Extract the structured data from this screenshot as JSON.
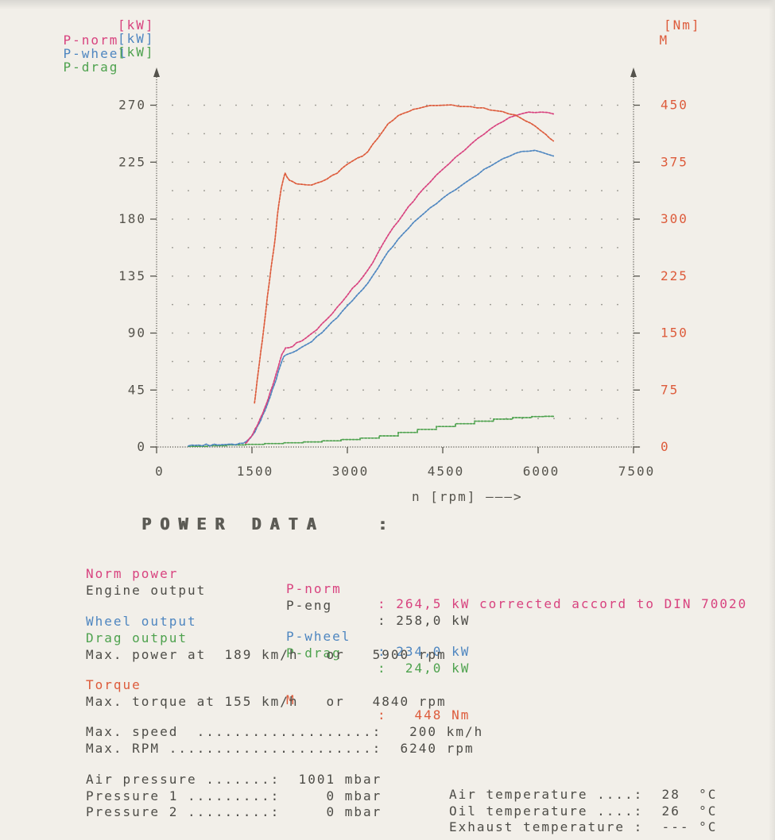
{
  "legend": {
    "items": [
      {
        "label": "P-norm",
        "unit": "[kW]",
        "color": "#d8437f"
      },
      {
        "label": "P-wheel",
        "unit": "[kW]",
        "color": "#4e86c0"
      },
      {
        "label": "P-drag",
        "unit": "[kW]",
        "color": "#4ea24e"
      }
    ],
    "torque": {
      "label": "M",
      "unit": "[Nm]",
      "color": "#dd5b3b"
    }
  },
  "chart_data": {
    "type": "line",
    "xlabel": "n [rpm] ———>",
    "x_ticks": [
      0,
      1500,
      3000,
      4500,
      6000,
      7500
    ],
    "x_range": [
      0,
      7500
    ],
    "grid": {
      "dots": true,
      "x_step_rpm": 250,
      "y_step_kw": 22.5
    },
    "left_axis": {
      "unit": "kW",
      "ticks": [
        0,
        45,
        90,
        135,
        180,
        225,
        270
      ],
      "range": [
        0,
        270
      ],
      "color": "#55534c"
    },
    "right_axis": {
      "unit": "Nm",
      "ticks": [
        0,
        75,
        150,
        225,
        300,
        375,
        450
      ],
      "range": [
        0,
        450
      ],
      "color": "#dd5b3b"
    },
    "series": [
      {
        "name": "P-drag",
        "axis": "left",
        "color": "#4ea24e",
        "step": true,
        "points": [
          [
            500,
            0.5
          ],
          [
            800,
            1.0
          ],
          [
            1100,
            1.6
          ],
          [
            1400,
            2.1
          ],
          [
            1700,
            2.7
          ],
          [
            2000,
            3.3
          ],
          [
            2300,
            4.0
          ],
          [
            2600,
            4.9
          ],
          [
            2900,
            5.9
          ],
          [
            3200,
            7.0
          ],
          [
            3500,
            8.8
          ],
          [
            3800,
            11.5
          ],
          [
            4100,
            13.9
          ],
          [
            4400,
            16.2
          ],
          [
            4700,
            18.4
          ],
          [
            5000,
            20.4
          ],
          [
            5300,
            22.0
          ],
          [
            5600,
            23.2
          ],
          [
            5900,
            24.0
          ],
          [
            6100,
            24.2
          ],
          [
            6240,
            24.4
          ]
        ]
      },
      {
        "name": "P-wheel",
        "axis": "left",
        "color": "#4e86c0",
        "step": false,
        "points": [
          [
            500,
            0.8
          ],
          [
            550,
            1.8
          ],
          [
            600,
            0.9
          ],
          [
            660,
            1.7
          ],
          [
            720,
            1.0
          ],
          [
            780,
            1.9
          ],
          [
            840,
            1.2
          ],
          [
            900,
            2.1
          ],
          [
            960,
            1.4
          ],
          [
            1030,
            2.2
          ],
          [
            1100,
            1.7
          ],
          [
            1170,
            2.4
          ],
          [
            1240,
            2.0
          ],
          [
            1310,
            2.6
          ],
          [
            1360,
            3.2
          ],
          [
            1400,
            4
          ],
          [
            1430,
            5
          ],
          [
            1460,
            6.5
          ],
          [
            1490,
            8
          ],
          [
            1520,
            10
          ],
          [
            1550,
            12.5
          ],
          [
            1580,
            15.5
          ],
          [
            1610,
            18.5
          ],
          [
            1640,
            21.5
          ],
          [
            1670,
            25
          ],
          [
            1700,
            28.5
          ],
          [
            1730,
            32
          ],
          [
            1760,
            36
          ],
          [
            1790,
            40.5
          ],
          [
            1820,
            45
          ],
          [
            1850,
            49
          ],
          [
            1880,
            53.5
          ],
          [
            1910,
            58.5
          ],
          [
            1940,
            63.5
          ],
          [
            1970,
            68
          ],
          [
            2000,
            71
          ],
          [
            2030,
            73
          ],
          [
            2080,
            73.5
          ],
          [
            2140,
            74.5
          ],
          [
            2200,
            76.5
          ],
          [
            2280,
            78.5
          ],
          [
            2360,
            81
          ],
          [
            2440,
            83.5
          ],
          [
            2520,
            87
          ],
          [
            2600,
            90.5
          ],
          [
            2680,
            94.5
          ],
          [
            2760,
            98.5
          ],
          [
            2840,
            102.5
          ],
          [
            2920,
            107
          ],
          [
            3000,
            111.5
          ],
          [
            3080,
            116
          ],
          [
            3160,
            120
          ],
          [
            3240,
            124.5
          ],
          [
            3320,
            129.5
          ],
          [
            3400,
            135
          ],
          [
            3480,
            141.5
          ],
          [
            3560,
            148
          ],
          [
            3640,
            154
          ],
          [
            3720,
            159
          ],
          [
            3800,
            164
          ],
          [
            3880,
            168.5
          ],
          [
            3960,
            173
          ],
          [
            4040,
            177
          ],
          [
            4120,
            181
          ],
          [
            4200,
            184.5
          ],
          [
            4300,
            188.5
          ],
          [
            4400,
            192.5
          ],
          [
            4500,
            196.5
          ],
          [
            4600,
            200
          ],
          [
            4700,
            203.5
          ],
          [
            4840,
            208
          ],
          [
            4950,
            212
          ],
          [
            5050,
            215.5
          ],
          [
            5150,
            219
          ],
          [
            5250,
            222
          ],
          [
            5350,
            225
          ],
          [
            5450,
            227.5
          ],
          [
            5550,
            230
          ],
          [
            5650,
            232
          ],
          [
            5750,
            233.3
          ],
          [
            5850,
            234
          ],
          [
            5950,
            234
          ],
          [
            6050,
            233
          ],
          [
            6150,
            231.5
          ],
          [
            6240,
            229.5
          ]
        ]
      },
      {
        "name": "P-norm",
        "axis": "left",
        "color": "#d8437f",
        "step": false,
        "points": [
          [
            1400,
            3
          ],
          [
            1430,
            4.5
          ],
          [
            1460,
            6.5
          ],
          [
            1490,
            8.5
          ],
          [
            1520,
            11
          ],
          [
            1550,
            14
          ],
          [
            1580,
            17
          ],
          [
            1610,
            20
          ],
          [
            1640,
            23.5
          ],
          [
            1670,
            27
          ],
          [
            1700,
            30.5
          ],
          [
            1730,
            34.5
          ],
          [
            1760,
            39
          ],
          [
            1790,
            43.5
          ],
          [
            1820,
            48
          ],
          [
            1850,
            52.5
          ],
          [
            1880,
            57.5
          ],
          [
            1910,
            63
          ],
          [
            1940,
            68
          ],
          [
            1970,
            73
          ],
          [
            2000,
            76
          ],
          [
            2030,
            78
          ],
          [
            2080,
            78.5
          ],
          [
            2140,
            79.5
          ],
          [
            2200,
            82
          ],
          [
            2280,
            84
          ],
          [
            2360,
            86.5
          ],
          [
            2440,
            89.5
          ],
          [
            2520,
            93
          ],
          [
            2600,
            97
          ],
          [
            2680,
            101
          ],
          [
            2760,
            105.5
          ],
          [
            2840,
            110
          ],
          [
            2920,
            115
          ],
          [
            3000,
            120
          ],
          [
            3080,
            125
          ],
          [
            3160,
            129.5
          ],
          [
            3240,
            134
          ],
          [
            3320,
            139.5
          ],
          [
            3400,
            146
          ],
          [
            3480,
            153
          ],
          [
            3560,
            160.5
          ],
          [
            3640,
            167.5
          ],
          [
            3720,
            173
          ],
          [
            3800,
            178.5
          ],
          [
            3880,
            184
          ],
          [
            3960,
            189.5
          ],
          [
            4040,
            194.5
          ],
          [
            4120,
            199.5
          ],
          [
            4200,
            204
          ],
          [
            4300,
            209.5
          ],
          [
            4400,
            214.5
          ],
          [
            4500,
            219.5
          ],
          [
            4600,
            224
          ],
          [
            4700,
            228.5
          ],
          [
            4840,
            234.5
          ],
          [
            4950,
            239.5
          ],
          [
            5050,
            243.5
          ],
          [
            5150,
            247.5
          ],
          [
            5250,
            251
          ],
          [
            5350,
            254.5
          ],
          [
            5450,
            257.5
          ],
          [
            5550,
            260
          ],
          [
            5650,
            262
          ],
          [
            5750,
            263.5
          ],
          [
            5850,
            264.2
          ],
          [
            5950,
            264.5
          ],
          [
            6050,
            264.5
          ],
          [
            6150,
            264
          ],
          [
            6240,
            263.5
          ]
        ]
      },
      {
        "name": "M",
        "axis": "right",
        "color": "#dd5b3b",
        "step": false,
        "points": [
          [
            1540,
            58
          ],
          [
            1560,
            72
          ],
          [
            1580,
            86
          ],
          [
            1600,
            100
          ],
          [
            1620,
            113
          ],
          [
            1640,
            126
          ],
          [
            1660,
            139
          ],
          [
            1680,
            152
          ],
          [
            1700,
            166
          ],
          [
            1720,
            181
          ],
          [
            1740,
            196
          ],
          [
            1760,
            209
          ],
          [
            1780,
            222
          ],
          [
            1800,
            235
          ],
          [
            1820,
            248
          ],
          [
            1840,
            259
          ],
          [
            1860,
            271
          ],
          [
            1880,
            288
          ],
          [
            1900,
            305
          ],
          [
            1920,
            318
          ],
          [
            1940,
            330
          ],
          [
            1960,
            340
          ],
          [
            1980,
            348
          ],
          [
            2000,
            355
          ],
          [
            2020,
            360
          ],
          [
            2050,
            356
          ],
          [
            2090,
            351
          ],
          [
            2140,
            349
          ],
          [
            2200,
            347
          ],
          [
            2280,
            345.5
          ],
          [
            2360,
            345
          ],
          [
            2440,
            345.5
          ],
          [
            2520,
            347
          ],
          [
            2600,
            350
          ],
          [
            2680,
            353
          ],
          [
            2760,
            357
          ],
          [
            2840,
            361
          ],
          [
            2920,
            367
          ],
          [
            3000,
            372
          ],
          [
            3080,
            377
          ],
          [
            3160,
            380
          ],
          [
            3240,
            383
          ],
          [
            3320,
            389
          ],
          [
            3400,
            398
          ],
          [
            3480,
            407
          ],
          [
            3560,
            416
          ],
          [
            3640,
            425
          ],
          [
            3720,
            431
          ],
          [
            3800,
            436
          ],
          [
            3880,
            439
          ],
          [
            3960,
            442
          ],
          [
            4040,
            444
          ],
          [
            4120,
            446
          ],
          [
            4200,
            448
          ],
          [
            4300,
            449
          ],
          [
            4400,
            450
          ],
          [
            4520,
            450
          ],
          [
            4640,
            450
          ],
          [
            4760,
            449
          ],
          [
            4840,
            448
          ],
          [
            4940,
            448
          ],
          [
            5040,
            447
          ],
          [
            5140,
            446
          ],
          [
            5240,
            444
          ],
          [
            5340,
            443
          ],
          [
            5440,
            441
          ],
          [
            5540,
            439
          ],
          [
            5640,
            437
          ],
          [
            5720,
            433
          ],
          [
            5800,
            430
          ],
          [
            5880,
            426
          ],
          [
            5960,
            422
          ],
          [
            6040,
            417
          ],
          [
            6120,
            411
          ],
          [
            6180,
            407
          ],
          [
            6240,
            403
          ]
        ]
      }
    ]
  },
  "power_data": {
    "title": "POWER DATA",
    "title_colon": ":",
    "rows": [
      {
        "label": "Norm power",
        "param": "P-norm",
        "value": ": 264,5 kW corrected accord to DIN 70020"
      },
      {
        "label": "Engine output",
        "param": "P-eng",
        "value": ": 258,0 kW"
      },
      {
        "label": "Wheel output",
        "param": "P-wheel",
        "value": ": 234,0 kW"
      },
      {
        "label": "Drag output",
        "param": "P-drag",
        "value": ":  24,0 kW"
      },
      {
        "label": "Max. power at  189 km/h   or   5900 rpm"
      },
      {
        "label": "Torque",
        "param": "M",
        "value": ":   448 Nm"
      },
      {
        "label": "Max. torque at 155 km/h   or   4840 rpm"
      },
      {
        "label": "Max. speed  ...................:   200 km/h"
      },
      {
        "label": "Max. RPM ......................:  6240 rpm"
      }
    ],
    "env_left": [
      "Air pressure .......:  1001 mbar",
      "Pressure 1 .........:     0 mbar",
      "Pressure 2 .........:     0 mbar"
    ],
    "env_right": [
      "Air temperature ....:  28  °C",
      "Oil temperature ....:  26  °C",
      "Exhaust temperature :  --- °C"
    ]
  }
}
